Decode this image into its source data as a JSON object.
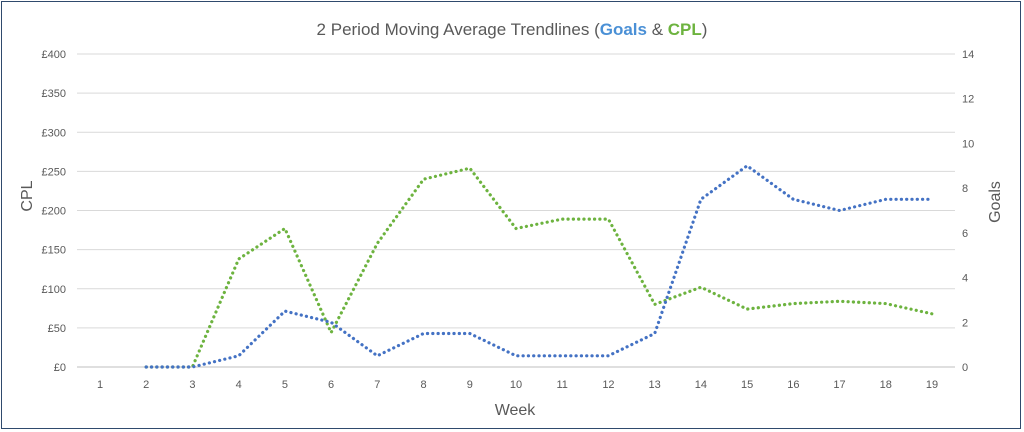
{
  "chart_data": {
    "type": "line",
    "title_prefix": "2 Period Moving Average Trendlines (",
    "title_goals": "Goals",
    "title_sep": " & ",
    "title_cpl": "CPL",
    "title_suffix": ")",
    "xlabel": "Week",
    "ylabel_left": "CPL",
    "ylabel_right": "Goals",
    "x": [
      1,
      2,
      3,
      4,
      5,
      6,
      7,
      8,
      9,
      10,
      11,
      12,
      13,
      14,
      15,
      16,
      17,
      18,
      19
    ],
    "left_axis": {
      "min": 0,
      "max": 400,
      "step": 50,
      "ticks": [
        "£0",
        "£50",
        "£100",
        "£150",
        "£200",
        "£250",
        "£300",
        "£350",
        "£400"
      ]
    },
    "right_axis": {
      "min": 0,
      "max": 14,
      "step": 2,
      "ticks": [
        "0",
        "2",
        "4",
        "6",
        "8",
        "10",
        "12",
        "14"
      ]
    },
    "grid": true,
    "series": [
      {
        "name": "CPL",
        "axis": "left",
        "color": "#6db33f",
        "x": [
          2,
          3,
          4,
          5,
          6,
          7,
          8,
          9,
          10,
          11,
          12,
          13,
          14,
          15,
          16,
          17,
          18,
          19
        ],
        "values": [
          0,
          0,
          138,
          177,
          44,
          158,
          240,
          254,
          177,
          189,
          189,
          80,
          102,
          74,
          81,
          84,
          81,
          68
        ]
      },
      {
        "name": "Goals",
        "axis": "right",
        "color": "#4472c4",
        "x": [
          2,
          3,
          4,
          5,
          6,
          7,
          8,
          9,
          10,
          11,
          12,
          13,
          14,
          15,
          16,
          17,
          18,
          19
        ],
        "values": [
          0,
          0,
          0.5,
          2.5,
          2,
          0.5,
          1.5,
          1.5,
          0.5,
          0.5,
          0.5,
          1.5,
          7.5,
          9,
          7.5,
          7,
          7.5,
          7.5
        ]
      }
    ]
  }
}
